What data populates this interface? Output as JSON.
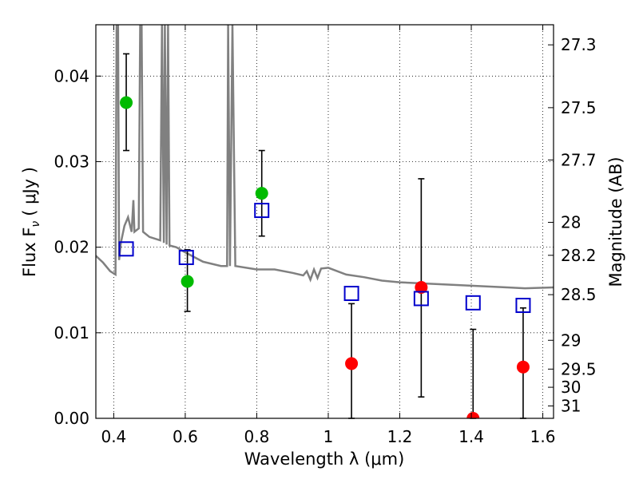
{
  "chart_data": {
    "type": "scatter",
    "title": "",
    "xlabel": "Wavelength  λ (μm)",
    "ylabel": "Flux  F",
    "ylabel_sub": "ν",
    "ylabel_unit": "( μJy )",
    "y2label": "Magnitude (AB)",
    "xlim": [
      0.35,
      1.63
    ],
    "ylim": [
      0.0,
      0.046
    ],
    "grid": true,
    "x_ticks": [
      0.4,
      0.6,
      0.8,
      1.0,
      1.2,
      1.4,
      1.6
    ],
    "x_tick_labels": [
      "0.4",
      "0.6",
      "0.8",
      "1",
      "1.2",
      "1.4",
      "1.6"
    ],
    "y_ticks": [
      0.0,
      0.01,
      0.02,
      0.03,
      0.04
    ],
    "y_tick_labels": [
      "0.00",
      "0.01",
      "0.02",
      "0.03",
      "0.04"
    ],
    "mag_ticks": [
      27.3,
      27.5,
      27.7,
      28,
      28.2,
      28.5,
      29,
      29.5,
      30,
      31
    ],
    "mag_tick_labels": [
      "27.3",
      "27.5",
      "27.7",
      "28",
      "28.2",
      "28.5",
      "29",
      "29.5",
      "30",
      "31"
    ],
    "colors": {
      "green": "#00bb00",
      "red": "#ff0000",
      "model_box": "#0000cc",
      "sed": "#808080",
      "error": "#000000"
    },
    "series": [
      {
        "marker": "circle",
        "color": "green",
        "points": [
          {
            "x": 0.435,
            "y": 0.0369,
            "yerr_low": 0.0313,
            "yerr_high": 0.0426
          },
          {
            "x": 0.606,
            "y": 0.016,
            "yerr_low": 0.0125,
            "yerr_high": 0.0197
          },
          {
            "x": 0.814,
            "y": 0.0263,
            "yerr_low": 0.0213,
            "yerr_high": 0.0313
          }
        ]
      },
      {
        "marker": "circle",
        "color": "red",
        "points": [
          {
            "x": 1.065,
            "y": 0.0064,
            "yerr_low": 0.0,
            "yerr_high": 0.0134
          },
          {
            "x": 1.26,
            "y": 0.0153,
            "yerr_low": 0.0025,
            "yerr_high": 0.028
          },
          {
            "x": 1.405,
            "y": 0.0,
            "yerr_low": 0.0,
            "yerr_high": 0.0104
          },
          {
            "x": 1.545,
            "y": 0.006,
            "yerr_low": 0.0,
            "yerr_high": 0.0129
          }
        ]
      },
      {
        "marker": "open-square",
        "color": "model_box",
        "points": [
          {
            "x": 0.435,
            "y": 0.0198
          },
          {
            "x": 0.603,
            "y": 0.0188
          },
          {
            "x": 0.814,
            "y": 0.0243
          },
          {
            "x": 1.065,
            "y": 0.0146
          },
          {
            "x": 1.26,
            "y": 0.014
          },
          {
            "x": 1.405,
            "y": 0.0135
          },
          {
            "x": 1.545,
            "y": 0.0132
          }
        ]
      }
    ],
    "sed_curve": [
      [
        0.35,
        0.019
      ],
      [
        0.37,
        0.0182
      ],
      [
        0.39,
        0.0172
      ],
      [
        0.405,
        0.0168
      ],
      [
        0.408,
        0.046
      ],
      [
        0.412,
        0.046
      ],
      [
        0.415,
        0.0185
      ],
      [
        0.42,
        0.0205
      ],
      [
        0.43,
        0.0225
      ],
      [
        0.44,
        0.0235
      ],
      [
        0.45,
        0.0218
      ],
      [
        0.455,
        0.0255
      ],
      [
        0.458,
        0.0218
      ],
      [
        0.47,
        0.0222
      ],
      [
        0.474,
        0.046
      ],
      [
        0.478,
        0.046
      ],
      [
        0.482,
        0.0218
      ],
      [
        0.5,
        0.0212
      ],
      [
        0.53,
        0.0208
      ],
      [
        0.535,
        0.046
      ],
      [
        0.54,
        0.0205
      ],
      [
        0.543,
        0.046
      ],
      [
        0.548,
        0.0203
      ],
      [
        0.552,
        0.046
      ],
      [
        0.556,
        0.0202
      ],
      [
        0.575,
        0.02
      ],
      [
        0.6,
        0.0194
      ],
      [
        0.65,
        0.0183
      ],
      [
        0.7,
        0.0178
      ],
      [
        0.717,
        0.0178
      ],
      [
        0.72,
        0.046
      ],
      [
        0.725,
        0.0178
      ],
      [
        0.732,
        0.046
      ],
      [
        0.74,
        0.0178
      ],
      [
        0.8,
        0.0174
      ],
      [
        0.85,
        0.0174
      ],
      [
        0.9,
        0.017
      ],
      [
        0.93,
        0.0167
      ],
      [
        0.94,
        0.0172
      ],
      [
        0.95,
        0.0162
      ],
      [
        0.96,
        0.0174
      ],
      [
        0.97,
        0.0164
      ],
      [
        0.98,
        0.0175
      ],
      [
        1.0,
        0.0176
      ],
      [
        1.05,
        0.0168
      ],
      [
        1.1,
        0.0165
      ],
      [
        1.15,
        0.0161
      ],
      [
        1.2,
        0.0159
      ],
      [
        1.3,
        0.0157
      ],
      [
        1.4,
        0.0155
      ],
      [
        1.5,
        0.0153
      ],
      [
        1.55,
        0.0152
      ],
      [
        1.63,
        0.0153
      ]
    ]
  }
}
